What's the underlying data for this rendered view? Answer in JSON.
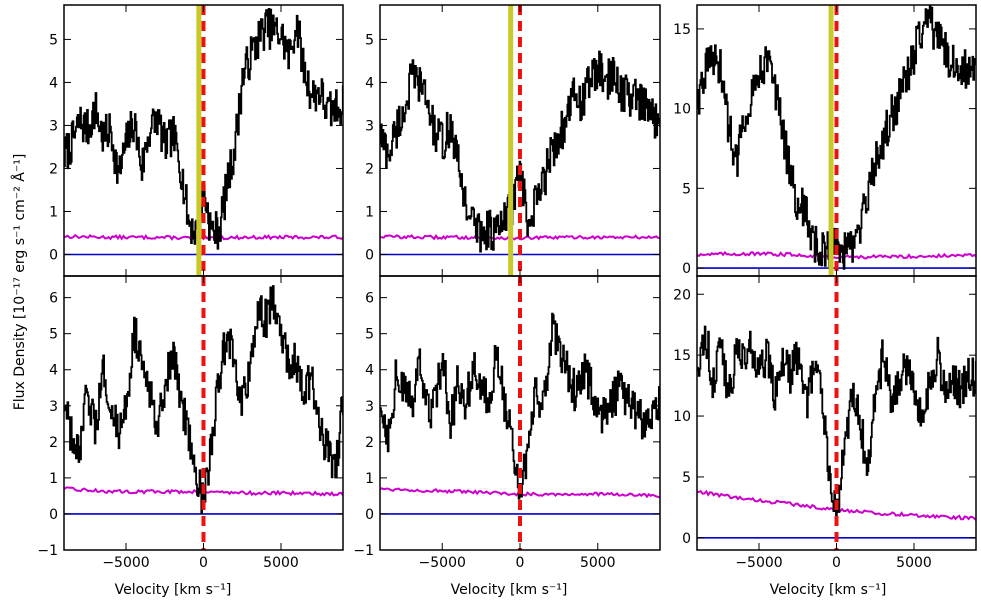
{
  "figure": {
    "ylabel": "Flux Density [10⁻¹⁷ erg s⁻¹ cm⁻² Å⁻¹]",
    "xlabel": "Velocity [km s⁻¹]"
  },
  "colors": {
    "flux": "#000000",
    "error": "#cc00cc",
    "zero": "#0000cc",
    "marker_dashed": "#ee1111",
    "marker_solid": "#c8c828"
  },
  "chart_data": [
    {
      "type": "line",
      "row": 0,
      "col": 0,
      "xlim": [
        -9000,
        9000
      ],
      "ylim": [
        -0.5,
        5.8
      ],
      "xticks": [
        -5000,
        0,
        5000
      ],
      "xtick_labels": [
        "",
        "",
        ""
      ],
      "yticks": [
        0,
        1,
        2,
        3,
        4,
        5
      ],
      "ytick_labels": [
        "0",
        "1",
        "2",
        "3",
        "4",
        "5"
      ],
      "dashed_marker": 0,
      "solid_marker": -300,
      "series": {
        "flux": {
          "x": [
            -9000,
            -8500,
            -8000,
            -7500,
            -7000,
            -6500,
            -6000,
            -5500,
            -5000,
            -4500,
            -4000,
            -3500,
            -3000,
            -2500,
            -2000,
            -1500,
            -1000,
            -500,
            0,
            500,
            1000,
            1500,
            2000,
            2500,
            3000,
            3500,
            4000,
            4500,
            5000,
            5500,
            6000,
            6500,
            7000,
            7500,
            8000,
            8500,
            9000
          ],
          "y": [
            2.3,
            2.6,
            3.1,
            2.9,
            3.4,
            2.7,
            2.9,
            1.8,
            2.6,
            3.1,
            2.0,
            2.9,
            3.2,
            2.5,
            2.8,
            2.1,
            0.8,
            0.5,
            1.5,
            0.5,
            0.6,
            1.6,
            2.5,
            4.1,
            4.6,
            5.0,
            5.3,
            5.2,
            5.1,
            4.6,
            5.4,
            4.2,
            3.7,
            3.8,
            3.3,
            3.4,
            3.5
          ]
        },
        "error": {
          "x": [
            -9000,
            -6000,
            -3000,
            0,
            3000,
            6000,
            9000
          ],
          "y": [
            0.42,
            0.4,
            0.4,
            0.38,
            0.4,
            0.4,
            0.4
          ]
        }
      }
    },
    {
      "type": "line",
      "row": 0,
      "col": 1,
      "xlim": [
        -9000,
        9000
      ],
      "ylim": [
        -0.5,
        5.8
      ],
      "xticks": [
        -5000,
        0,
        5000
      ],
      "xtick_labels": [
        "",
        "",
        ""
      ],
      "yticks": [
        0,
        1,
        2,
        3,
        4,
        5
      ],
      "ytick_labels": [
        "0",
        "1",
        "2",
        "3",
        "4",
        "5"
      ],
      "dashed_marker": 0,
      "solid_marker": -600,
      "series": {
        "flux": {
          "x": [
            -9000,
            -8500,
            -8000,
            -7500,
            -7000,
            -6500,
            -6000,
            -5500,
            -5000,
            -4500,
            -4000,
            -3500,
            -3000,
            -2500,
            -2000,
            -1500,
            -1000,
            -500,
            0,
            500,
            1000,
            1500,
            2000,
            2500,
            3000,
            3500,
            4000,
            4500,
            5000,
            5500,
            6000,
            6500,
            7000,
            7500,
            8000,
            8500,
            9000
          ],
          "y": [
            2.8,
            2.3,
            2.9,
            3.3,
            4.1,
            4.0,
            3.6,
            2.8,
            2.6,
            3.0,
            2.1,
            1.2,
            0.7,
            0.5,
            0.6,
            0.5,
            0.8,
            1.2,
            2.0,
            0.5,
            1.2,
            1.7,
            2.4,
            2.8,
            3.1,
            3.8,
            3.5,
            4.1,
            4.3,
            4.0,
            4.2,
            3.8,
            3.7,
            3.6,
            3.4,
            3.2,
            3.1
          ]
        },
        "error": {
          "x": [
            -9000,
            -6000,
            -3000,
            0,
            3000,
            6000,
            9000
          ],
          "y": [
            0.42,
            0.4,
            0.4,
            0.38,
            0.4,
            0.4,
            0.4
          ]
        }
      }
    },
    {
      "type": "line",
      "row": 0,
      "col": 2,
      "xlim": [
        -9000,
        9000
      ],
      "ylim": [
        -0.5,
        16.5
      ],
      "xticks": [
        -5000,
        0,
        5000
      ],
      "xtick_labels": [
        "",
        "",
        ""
      ],
      "yticks": [
        0,
        5,
        10,
        15
      ],
      "ytick_labels": [
        "0",
        "5",
        "10",
        "15"
      ],
      "dashed_marker": 0,
      "solid_marker": -350,
      "series": {
        "flux": {
          "x": [
            -9000,
            -8500,
            -8000,
            -7500,
            -7000,
            -6500,
            -6000,
            -5500,
            -5000,
            -4500,
            -4000,
            -3500,
            -3000,
            -2500,
            -2000,
            -1500,
            -1000,
            -500,
            0,
            500,
            1000,
            1500,
            2000,
            2500,
            3000,
            3500,
            4000,
            4500,
            5000,
            5500,
            6000,
            6500,
            7000,
            7500,
            8000,
            8500,
            9000
          ],
          "y": [
            10.5,
            12.5,
            13.0,
            12.5,
            9.0,
            6.5,
            9.5,
            11.0,
            12.5,
            13.0,
            11.5,
            8.5,
            6.0,
            4.0,
            3.5,
            1.5,
            1.0,
            1.2,
            2.0,
            1.0,
            1.2,
            2.5,
            4.5,
            6.5,
            8.0,
            9.5,
            10.5,
            12.0,
            13.5,
            15.0,
            15.5,
            14.5,
            13.5,
            13.0,
            12.5,
            12.5,
            12.5
          ]
        },
        "error": {
          "x": [
            -9000,
            -6000,
            -3000,
            0,
            3000,
            6000,
            9000
          ],
          "y": [
            0.85,
            0.9,
            0.85,
            0.7,
            0.7,
            0.75,
            0.8
          ]
        }
      }
    },
    {
      "type": "line",
      "row": 1,
      "col": 0,
      "xlim": [
        -9000,
        9000
      ],
      "ylim": [
        -1,
        6.6
      ],
      "xticks": [
        -5000,
        0,
        5000
      ],
      "xtick_labels": [
        "−5000",
        "0",
        "5000"
      ],
      "yticks": [
        -1,
        0,
        1,
        2,
        3,
        4,
        5,
        6
      ],
      "ytick_labels": [
        "−1",
        "0",
        "1",
        "2",
        "3",
        "4",
        "5",
        "6"
      ],
      "dashed_marker": 0,
      "solid_marker": null,
      "series": {
        "flux": {
          "x": [
            -9000,
            -8500,
            -8000,
            -7500,
            -7000,
            -6500,
            -6000,
            -5500,
            -5000,
            -4500,
            -4000,
            -3500,
            -3000,
            -2500,
            -2000,
            -1500,
            -1000,
            -500,
            0,
            500,
            1000,
            1500,
            2000,
            2500,
            3000,
            3500,
            4000,
            4500,
            5000,
            5500,
            6000,
            6500,
            7000,
            7500,
            8000,
            8500,
            9000
          ],
          "y": [
            3.0,
            2.0,
            1.5,
            3.5,
            2.2,
            4.0,
            3.2,
            2.0,
            3.0,
            5.2,
            4.0,
            3.4,
            2.6,
            3.6,
            4.4,
            3.2,
            2.4,
            1.2,
            0.2,
            2.0,
            3.8,
            5.0,
            4.0,
            3.0,
            4.2,
            5.6,
            5.4,
            6.0,
            4.8,
            4.2,
            4.2,
            3.4,
            3.8,
            2.4,
            1.8,
            1.2,
            3.2
          ]
        },
        "error": {
          "x": [
            -9000,
            -6000,
            -3000,
            0,
            3000,
            6000,
            9000
          ],
          "y": [
            0.7,
            0.62,
            0.62,
            0.62,
            0.58,
            0.58,
            0.55
          ]
        }
      }
    },
    {
      "type": "line",
      "row": 1,
      "col": 1,
      "xlim": [
        -9000,
        9000
      ],
      "ylim": [
        -1,
        6.6
      ],
      "xticks": [
        -5000,
        0,
        5000
      ],
      "xtick_labels": [
        "−5000",
        "0",
        "5000"
      ],
      "yticks": [
        -1,
        0,
        1,
        2,
        3,
        4,
        5,
        6
      ],
      "ytick_labels": [
        "−1",
        "0",
        "1",
        "2",
        "3",
        "4",
        "5",
        "6"
      ],
      "dashed_marker": 0,
      "solid_marker": null,
      "series": {
        "flux": {
          "x": [
            -9000,
            -8500,
            -8000,
            -7500,
            -7000,
            -6500,
            -6000,
            -5500,
            -5000,
            -4500,
            -4000,
            -3500,
            -3000,
            -2500,
            -2000,
            -1500,
            -1000,
            -500,
            0,
            500,
            1000,
            1500,
            2000,
            2500,
            3000,
            3500,
            4000,
            4500,
            5000,
            5500,
            6000,
            6500,
            7000,
            7500,
            8000,
            8500,
            9000
          ],
          "y": [
            3.0,
            2.2,
            3.8,
            3.4,
            3.0,
            4.2,
            2.8,
            3.0,
            4.4,
            2.4,
            3.8,
            3.0,
            4.2,
            3.6,
            2.8,
            4.6,
            3.0,
            2.0,
            0.4,
            2.0,
            3.4,
            3.0,
            5.2,
            4.6,
            4.0,
            3.4,
            4.0,
            3.6,
            3.0,
            2.6,
            3.2,
            3.6,
            3.0,
            2.8,
            2.4,
            3.0,
            3.0
          ]
        },
        "error": {
          "x": [
            -9000,
            -6000,
            -3000,
            0,
            3000,
            6000,
            9000
          ],
          "y": [
            0.7,
            0.65,
            0.6,
            0.55,
            0.55,
            0.55,
            0.5
          ]
        }
      }
    },
    {
      "type": "line",
      "row": 1,
      "col": 2,
      "xlim": [
        -9000,
        9000
      ],
      "ylim": [
        -1,
        21.5
      ],
      "xticks": [
        -5000,
        0,
        5000
      ],
      "xtick_labels": [
        "−5000",
        "0",
        "5000"
      ],
      "yticks": [
        0,
        5,
        10,
        15,
        20
      ],
      "ytick_labels": [
        "0",
        "5",
        "10",
        "15",
        "20"
      ],
      "dashed_marker": 0,
      "solid_marker": null,
      "series": {
        "flux": {
          "x": [
            -9000,
            -8500,
            -8000,
            -7500,
            -7000,
            -6500,
            -6000,
            -5500,
            -5000,
            -4500,
            -4000,
            -3500,
            -3000,
            -2500,
            -2000,
            -1500,
            -1000,
            -500,
            0,
            500,
            1000,
            1500,
            2000,
            2500,
            3000,
            3500,
            4000,
            4500,
            5000,
            5500,
            6000,
            6500,
            7000,
            7500,
            8000,
            8500,
            9000
          ],
          "y": [
            14.0,
            17.0,
            13.0,
            16.0,
            12.0,
            15.0,
            14.5,
            16.0,
            13.0,
            15.5,
            12.0,
            14.5,
            13.5,
            15.0,
            11.0,
            14.0,
            12.0,
            6.0,
            2.0,
            8.0,
            12.0,
            10.0,
            5.0,
            12.0,
            15.0,
            11.0,
            13.0,
            14.0,
            12.0,
            10.0,
            13.0,
            15.0,
            12.0,
            13.0,
            12.0,
            14.0,
            13.0
          ]
        },
        "error": {
          "x": [
            -9000,
            -6000,
            -3000,
            0,
            3000,
            6000,
            9000
          ],
          "y": [
            3.8,
            3.2,
            2.8,
            2.3,
            2.0,
            1.8,
            1.6
          ]
        }
      }
    }
  ]
}
